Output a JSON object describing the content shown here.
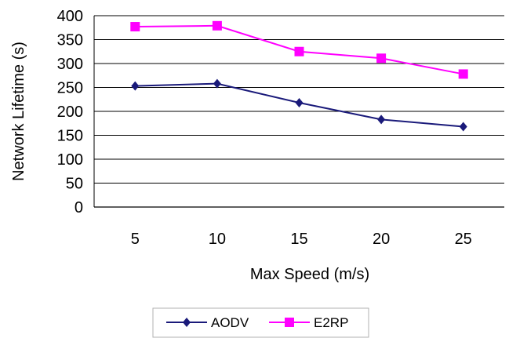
{
  "chart_data": {
    "type": "line",
    "title": "",
    "xlabel": "Max Speed (m/s)",
    "ylabel": "Network Lifetime (s)",
    "categories": [
      "5",
      "10",
      "15",
      "20",
      "25"
    ],
    "ylim": [
      0,
      400
    ],
    "yticks": [
      "0",
      "50",
      "100",
      "150",
      "200",
      "250",
      "300",
      "350",
      "400"
    ],
    "grid": true,
    "legend_position": "bottom",
    "series": [
      {
        "name": "AODV",
        "values": [
          253,
          258,
          218,
          183,
          168
        ],
        "color": "#1a1a7a",
        "marker": "diamond"
      },
      {
        "name": "E2RP",
        "values": [
          377,
          379,
          325,
          311,
          278
        ],
        "color": "#ff00ff",
        "marker": "square"
      }
    ]
  }
}
